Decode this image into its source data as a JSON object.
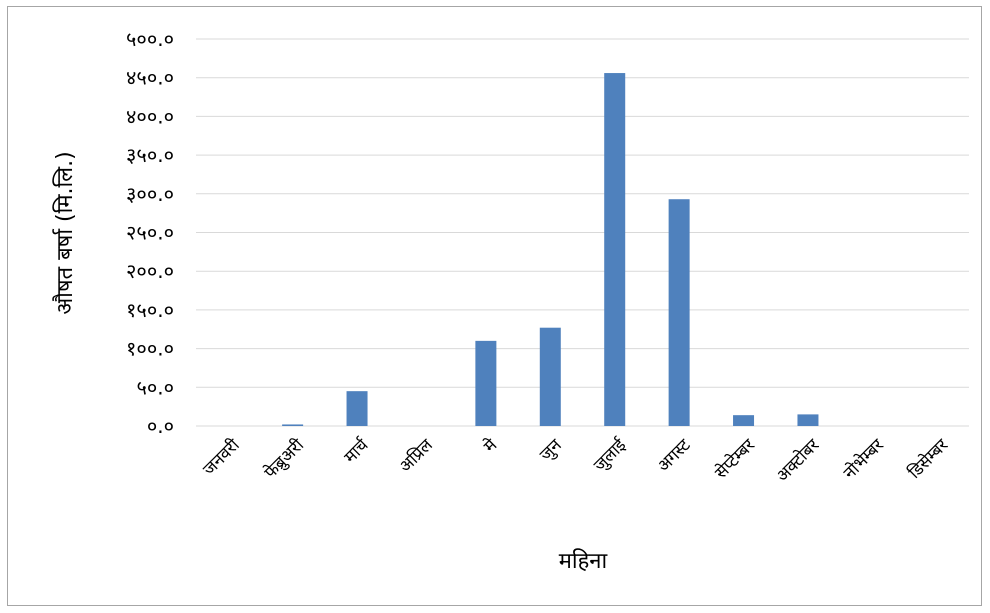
{
  "chart_data": {
    "type": "bar",
    "categories": [
      "जनवरी",
      "फेब्रुअरी",
      "मार्च",
      "अप्रिल",
      "मे",
      "जुन",
      "जुलाई",
      "अगस्ट",
      "सेप्टेम्बर",
      "अक्टोबर",
      "नोभेम्बर",
      "डिसेम्बर"
    ],
    "values": [
      0,
      2,
      45,
      0,
      110,
      127,
      456,
      293,
      14,
      15,
      0,
      0
    ],
    "title": "",
    "xlabel": "महिना",
    "ylabel": "औषत बर्षा (मि.लि.)",
    "ylim": [
      0,
      500
    ],
    "ytick_values": [
      0,
      50,
      100,
      150,
      200,
      250,
      300,
      350,
      400,
      450,
      500
    ],
    "ytick_labels": [
      "०.०",
      "५०.०",
      "१००.०",
      "१५०.०",
      "२००.०",
      "२५०.०",
      "३००.०",
      "३५०.०",
      "४००.०",
      "४५०.०",
      "५००.०"
    ],
    "bar_color": "#4f81bd",
    "grid": true,
    "legend": "none"
  }
}
